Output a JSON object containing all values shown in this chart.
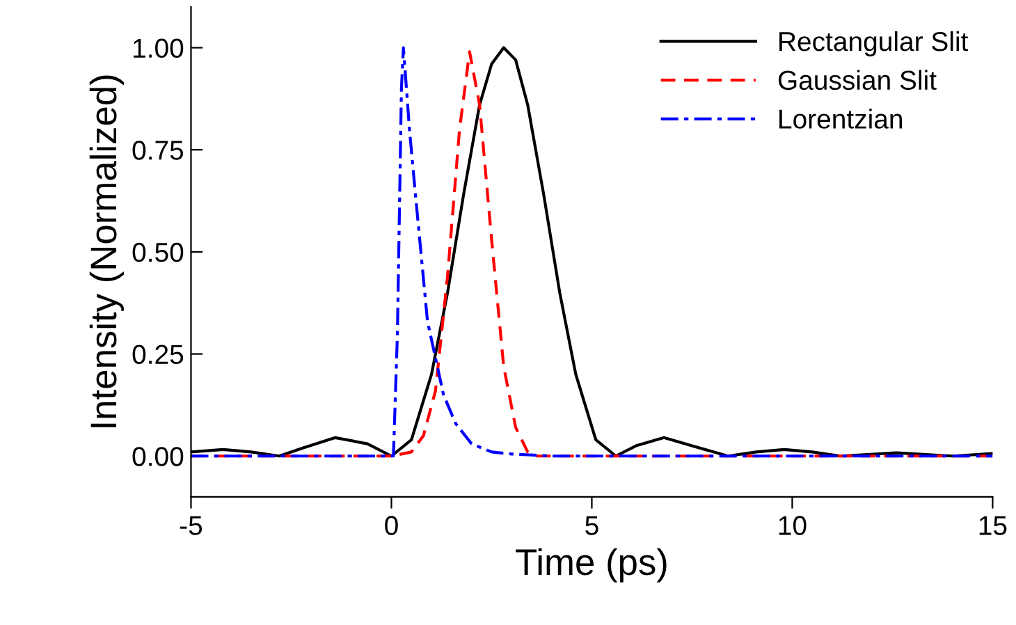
{
  "chart_data": {
    "type": "line",
    "xlabel": "Time (ps)",
    "ylabel": "Intensity (Normalized)",
    "xlim": [
      -5,
      15
    ],
    "ylim": [
      -0.1,
      1.1
    ],
    "xticks": [
      -5,
      0,
      5,
      10,
      15
    ],
    "yticks": [
      {
        "value": 0,
        "label": "0.00"
      },
      {
        "value": 0.25,
        "label": "0.25"
      },
      {
        "value": 0.5,
        "label": "0.50"
      },
      {
        "value": 0.75,
        "label": "0.75"
      },
      {
        "value": 1,
        "label": "1.00"
      }
    ],
    "grid": false,
    "legend": "top right",
    "series": [
      {
        "name": "Rectangular Slit",
        "color": "#000000",
        "line_style": "solid",
        "x": [
          -5,
          -4.2,
          -3.5,
          -2.8,
          -2.2,
          -1.4,
          -0.6,
          0,
          0.5,
          1.0,
          1.4,
          1.8,
          2.2,
          2.5,
          2.8,
          3.1,
          3.4,
          3.8,
          4.2,
          4.6,
          5.1,
          5.6,
          6.1,
          6.8,
          7.5,
          8.4,
          9.1,
          9.8,
          10.5,
          11.2,
          12.6,
          14,
          15
        ],
        "values": [
          0.01,
          0.016,
          0.01,
          0,
          0.02,
          0.045,
          0.03,
          0,
          0.04,
          0.2,
          0.4,
          0.64,
          0.86,
          0.96,
          1.0,
          0.97,
          0.86,
          0.64,
          0.4,
          0.2,
          0.04,
          0,
          0.025,
          0.045,
          0.025,
          0,
          0.01,
          0.016,
          0.01,
          0,
          0.008,
          0,
          0.006
        ]
      },
      {
        "name": "Gaussian Slit",
        "color": "#ff0000",
        "line_style": "dashed",
        "x": [
          -5,
          0,
          0.5,
          0.8,
          1.1,
          1.4,
          1.7,
          1.95,
          2.2,
          2.5,
          2.8,
          3.1,
          3.4,
          3.6,
          15
        ],
        "values": [
          0,
          0,
          0.01,
          0.05,
          0.16,
          0.44,
          0.8,
          0.99,
          0.86,
          0.53,
          0.22,
          0.07,
          0.01,
          0,
          0
        ]
      },
      {
        "name": "Lorentzian",
        "color": "#0000ff",
        "line_style": "dashdot",
        "x": [
          -5,
          0.05,
          0.15,
          0.25,
          0.3,
          0.45,
          0.6,
          0.9,
          1.3,
          1.6,
          2.0,
          2.5,
          3.0,
          4.0,
          15
        ],
        "values": [
          0,
          0,
          0.3,
          0.9,
          1.0,
          0.8,
          0.64,
          0.33,
          0.15,
          0.08,
          0.03,
          0.01,
          0.005,
          0,
          0
        ]
      }
    ]
  }
}
